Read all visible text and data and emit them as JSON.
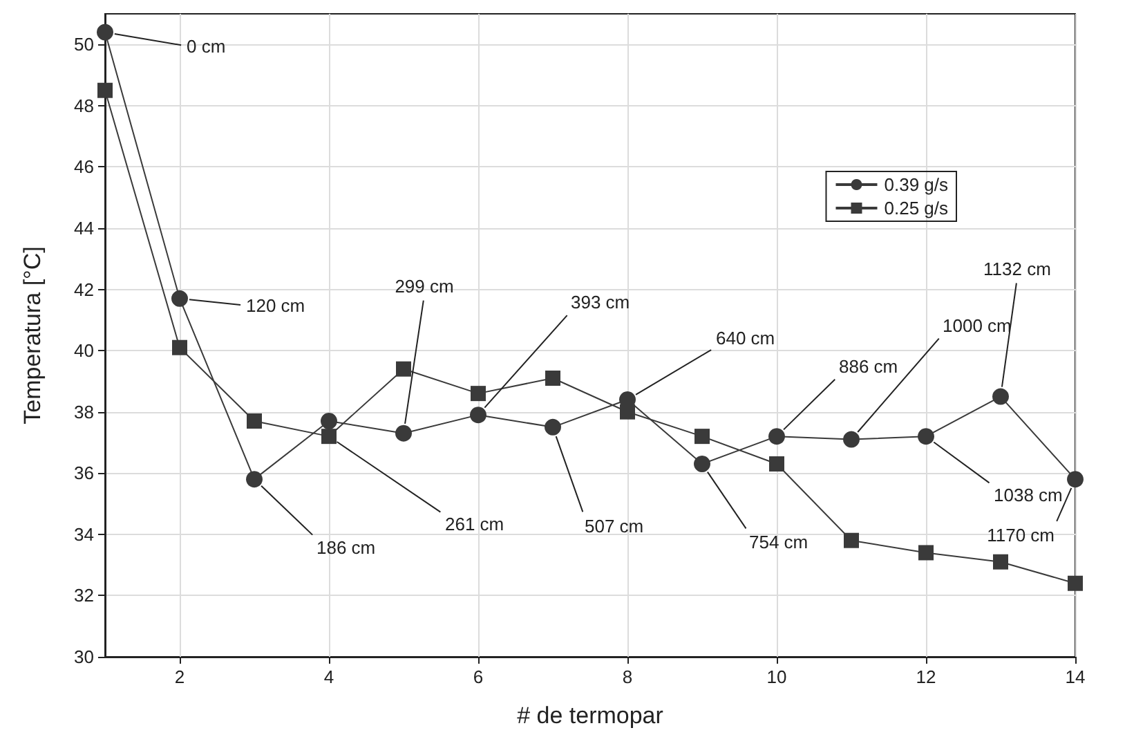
{
  "chart_data": {
    "type": "line",
    "xlabel": "# de termopar",
    "ylabel": "Temperatura [°C]",
    "x": [
      1,
      2,
      3,
      4,
      5,
      6,
      7,
      8,
      9,
      10,
      11,
      12,
      13,
      14
    ],
    "series": [
      {
        "name": "0.39 g/s",
        "color": "#3a3a3a",
        "marker": "circle",
        "values": [
          50.4,
          41.7,
          35.8,
          37.7,
          37.3,
          37.9,
          37.5,
          38.4,
          36.3,
          37.2,
          37.1,
          37.2,
          38.5,
          35.8
        ]
      },
      {
        "name": "0.25 g/s",
        "color": "#3a3a3a",
        "marker": "square",
        "values": [
          48.5,
          40.1,
          37.7,
          37.2,
          39.4,
          38.6,
          39.1,
          38.0,
          37.2,
          36.3,
          33.8,
          33.4,
          33.1,
          32.4
        ]
      }
    ],
    "xlim": [
      1,
      14
    ],
    "xticks": [
      2,
      4,
      6,
      8,
      10,
      12,
      14
    ],
    "ylim": [
      30,
      51
    ],
    "yticks": [
      30,
      32,
      34,
      36,
      38,
      40,
      42,
      44,
      46,
      48,
      50
    ],
    "grid": true,
    "legend": "right",
    "annotations": [
      {
        "text": "0 cm",
        "x": 1,
        "y": 50.4
      },
      {
        "text": "120 cm",
        "x": 2,
        "y": 41.7
      },
      {
        "text": "186 cm",
        "x": 3,
        "y": 35.8
      },
      {
        "text": "261 cm",
        "x": 4,
        "y": 37.2
      },
      {
        "text": "299 cm",
        "x": 5,
        "y": 37.3
      },
      {
        "text": "393 cm",
        "x": 6,
        "y": 37.9
      },
      {
        "text": "507 cm",
        "x": 7,
        "y": 37.5
      },
      {
        "text": "640 cm",
        "x": 8,
        "y": 38.4
      },
      {
        "text": "754 cm",
        "x": 9,
        "y": 36.3
      },
      {
        "text": "886 cm",
        "x": 10,
        "y": 37.2
      },
      {
        "text": "1000 cm",
        "x": 11,
        "y": 37.1
      },
      {
        "text": "1038 cm",
        "x": 12,
        "y": 37.2
      },
      {
        "text": "1132 cm",
        "x": 13,
        "y": 38.5
      },
      {
        "text": "1170 cm",
        "x": 14,
        "y": 35.8
      }
    ]
  }
}
